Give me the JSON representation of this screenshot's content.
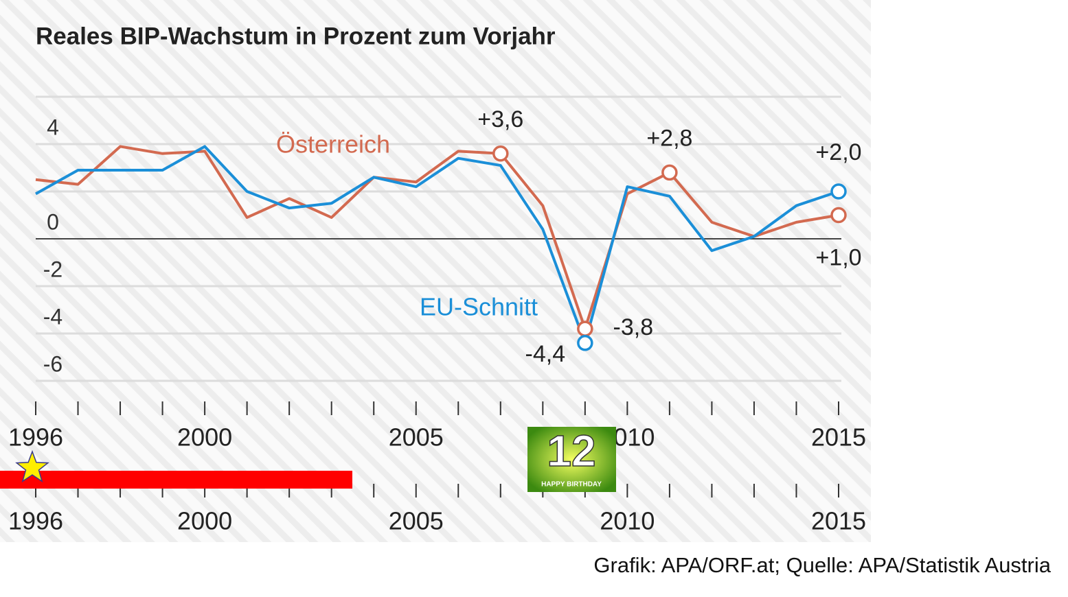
{
  "chart_data": {
    "type": "line",
    "title": "Reales BIP-Wachstum in Prozent zum Vorjahr",
    "x": [
      1996,
      1997,
      1998,
      1999,
      2000,
      2001,
      2002,
      2003,
      2004,
      2005,
      2006,
      2007,
      2008,
      2009,
      2010,
      2011,
      2012,
      2013,
      2014,
      2015
    ],
    "series": [
      {
        "name": "Österreich",
        "color": "#d36a50",
        "values": [
          2.5,
          2.3,
          3.9,
          3.6,
          3.7,
          0.9,
          1.7,
          0.9,
          2.6,
          2.4,
          3.7,
          3.6,
          1.4,
          -3.8,
          1.9,
          2.8,
          0.7,
          0.1,
          0.7,
          1.0
        ],
        "value_labels": [
          null,
          null,
          null,
          null,
          null,
          null,
          null,
          null,
          null,
          null,
          null,
          "+3,6",
          null,
          "-3,8",
          null,
          "+2,8",
          null,
          null,
          null,
          "+1,0"
        ]
      },
      {
        "name": "EU-Schnitt",
        "color": "#1b8fd8",
        "values": [
          1.9,
          2.9,
          2.9,
          2.9,
          3.9,
          2.0,
          1.3,
          1.5,
          2.6,
          2.2,
          3.4,
          3.1,
          0.4,
          -4.4,
          2.2,
          1.8,
          -0.5,
          0.1,
          1.4,
          2.0
        ],
        "value_labels": [
          null,
          null,
          null,
          null,
          null,
          null,
          null,
          null,
          null,
          null,
          null,
          null,
          null,
          "-4,4",
          null,
          null,
          null,
          null,
          null,
          "+2,0"
        ]
      }
    ],
    "xlim": [
      1996,
      2015
    ],
    "xticks": [
      1996,
      2000,
      2005,
      2010,
      2015
    ],
    "ylim": [
      -6,
      6
    ],
    "yticks": [
      -6,
      -4,
      -2,
      0,
      4
    ],
    "ygrid": [
      -6,
      -4,
      -2,
      0,
      2,
      4,
      6
    ],
    "source": "Grafik: APA/ORF.at; Quelle: APA/Statistik Austria"
  },
  "overlay": {
    "sticker_number": "12",
    "sticker_text": "HAPPY BIRTHDAY"
  }
}
